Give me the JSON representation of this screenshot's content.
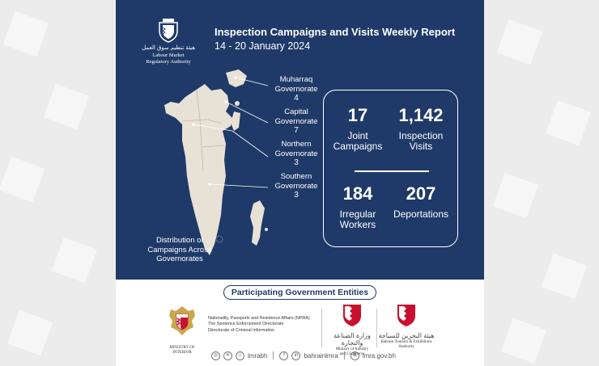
{
  "colors": {
    "navy": "#1f3a68",
    "map_fill": "#e8e1d6",
    "gold": "#c9a84c",
    "red": "#c8102e"
  },
  "header": {
    "title": "Inspection Campaigns and Visits Weekly Report",
    "dates": "14 - 20 January 2024",
    "logo_text_line1": "Labour Market",
    "logo_text_line2": "Regulatory Authority"
  },
  "governorates": [
    {
      "name_line1": "Muharraq",
      "name_line2": "Governorate",
      "value": "4"
    },
    {
      "name_line1": "Capital",
      "name_line2": "Governorate",
      "value": "7"
    },
    {
      "name_line1": "Northern",
      "name_line2": "Governorate",
      "value": "3"
    },
    {
      "name_line1": "Southern",
      "name_line2": "Governorate",
      "value": "3"
    }
  ],
  "map_caption": {
    "line1": "Distribution of",
    "line2": "Campaigns Across",
    "line3": "Governorates"
  },
  "stats": [
    {
      "value": "17",
      "label_line1": "Joint",
      "label_line2": "Campaigns"
    },
    {
      "value": "1,142",
      "label_line1": "Inspection",
      "label_line2": "Visits"
    },
    {
      "value": "184",
      "label_line1": "Irregular",
      "label_line2": "Workers"
    },
    {
      "value": "207",
      "label_line1": "Deportations",
      "label_line2": ""
    }
  ],
  "participating": {
    "heading": "Participating Government Entities",
    "npra_lines": [
      "Nationality, Passports and Residence Affairs (NPRA)",
      "The Sentence Enforcement Directorate",
      "Directorate of Criminal Information"
    ],
    "npra_caption": "MINISTRY OF INTERIOR",
    "moic_caption_line1": "Ministry of Industry",
    "moic_caption_line2": "and Commerce",
    "btea_caption_line1": "Bahrain Tourism & Exhibitions",
    "btea_caption_line2": "Authority"
  },
  "footer": {
    "handle1": "lmrabh",
    "handle2": "bahrainlmra",
    "website": "lmra.gov.bh"
  }
}
